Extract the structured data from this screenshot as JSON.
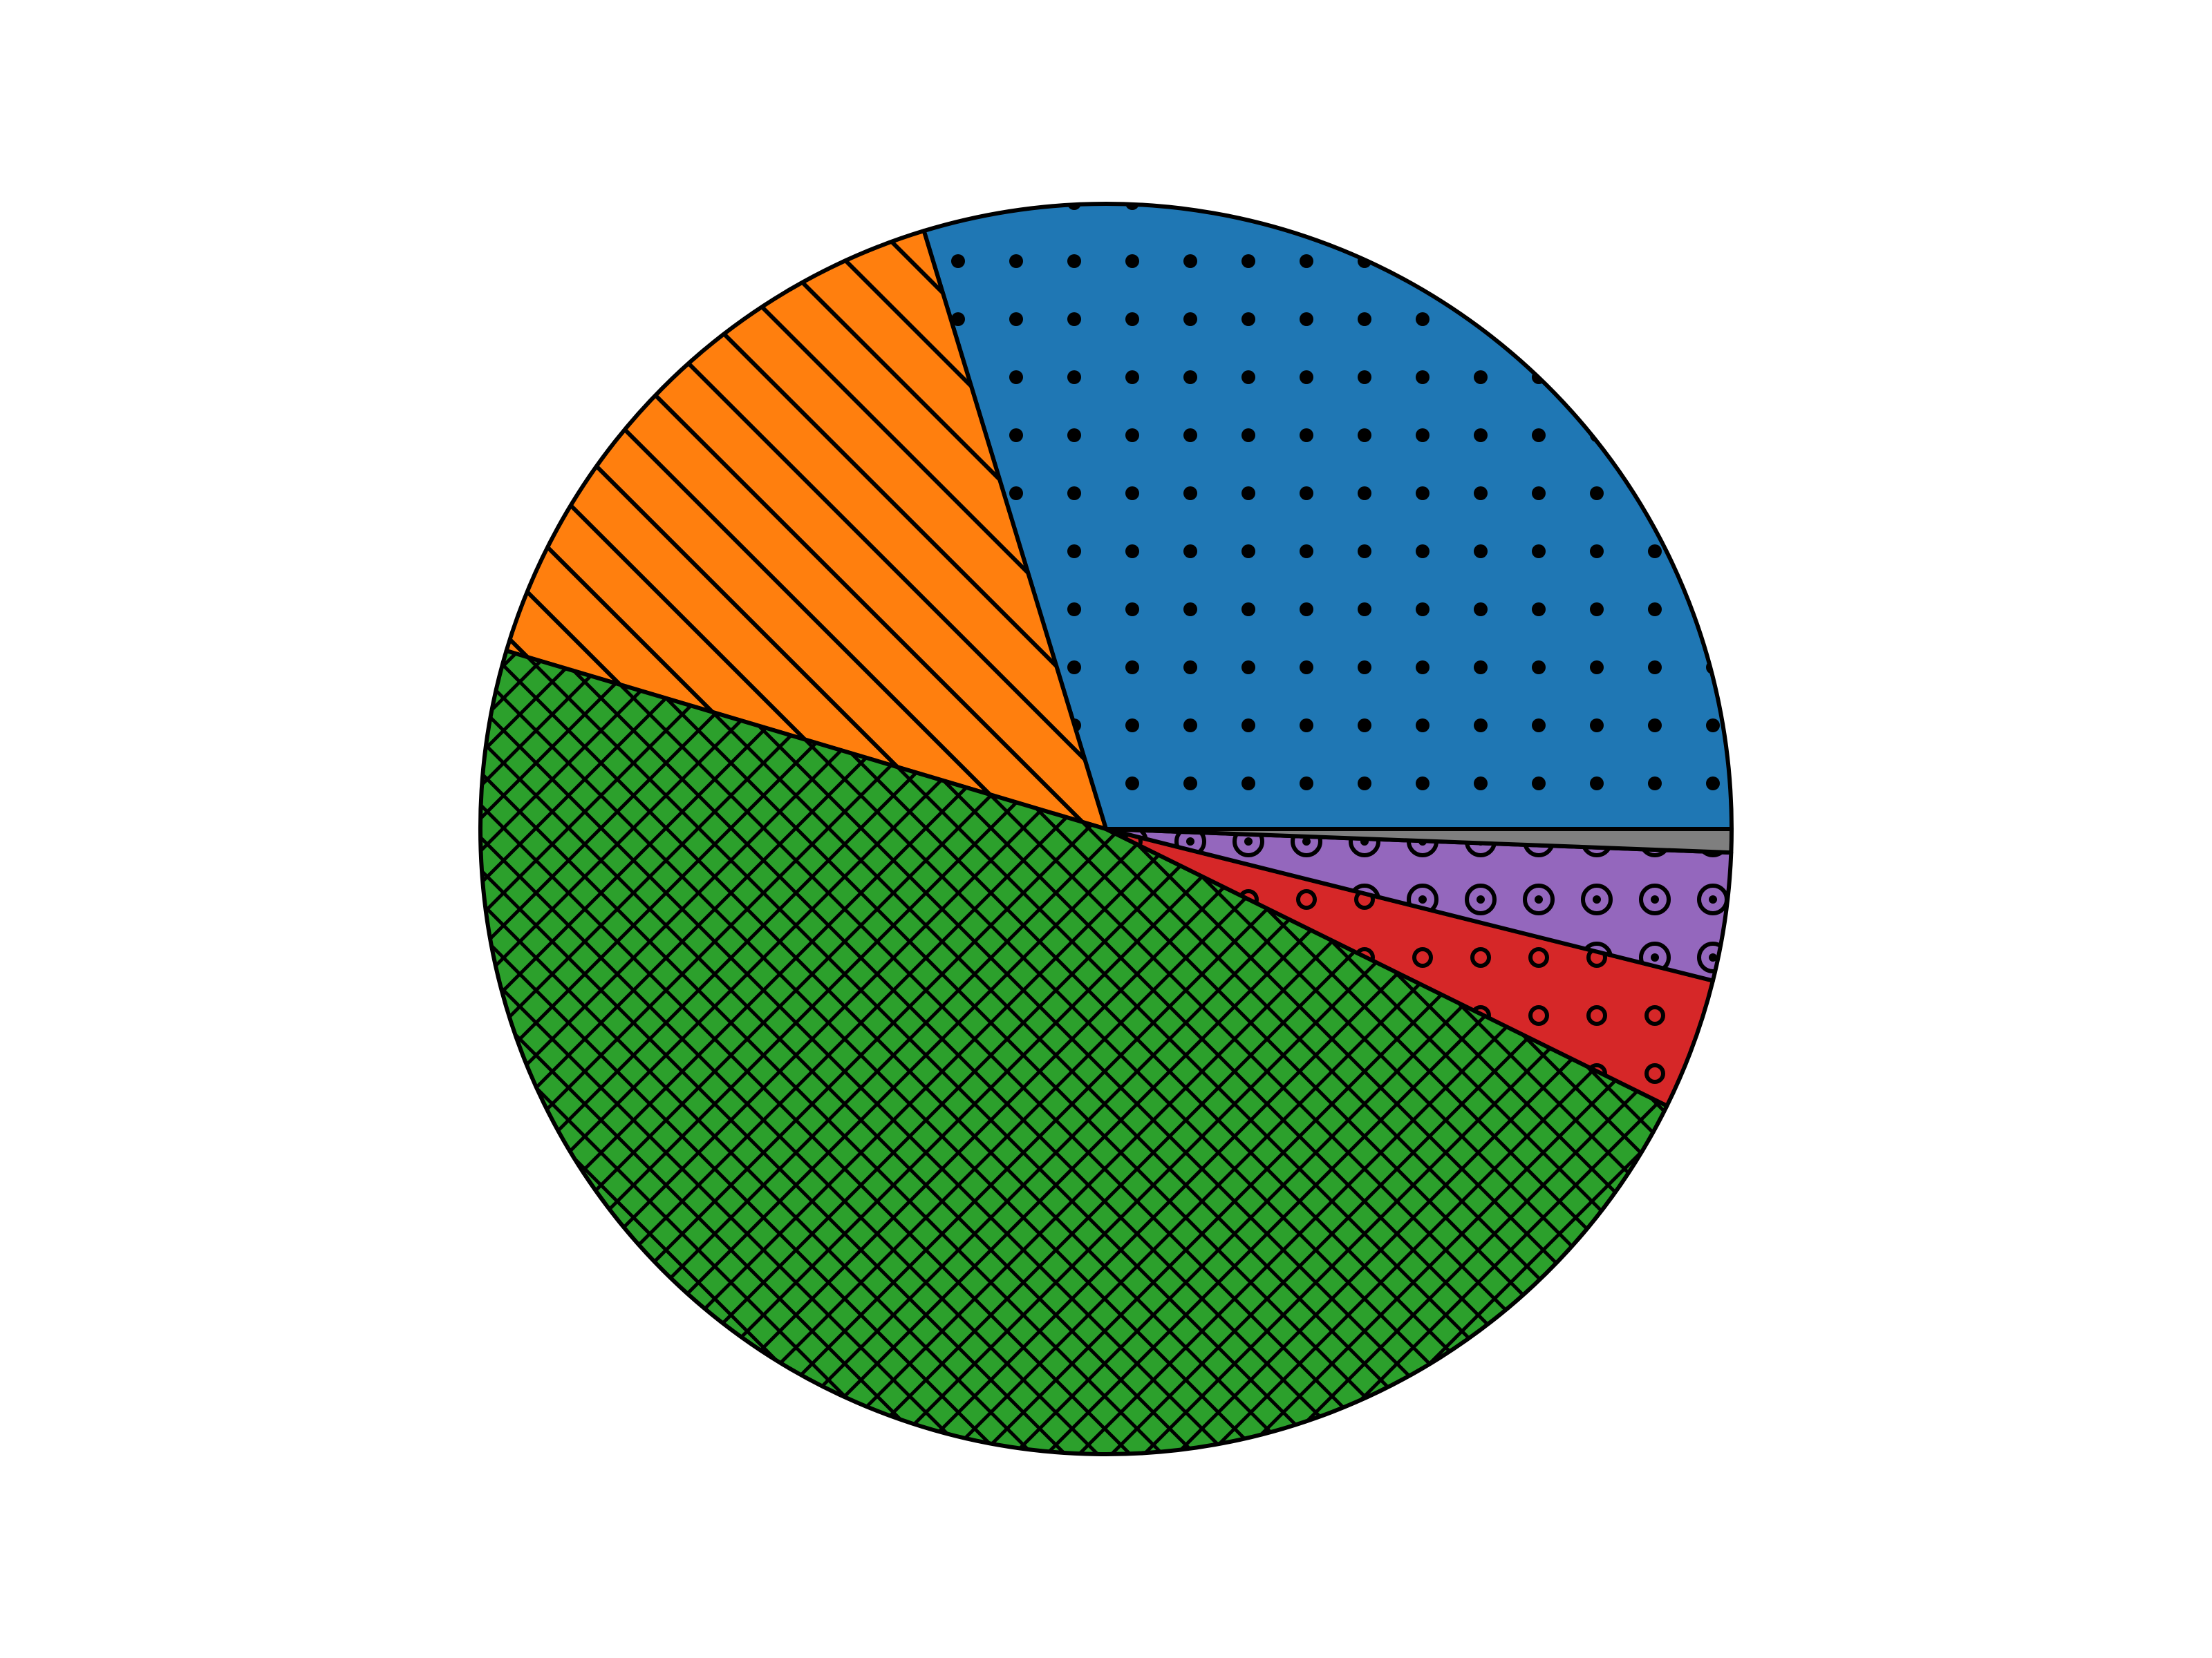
{
  "chart_data": {
    "type": "pie",
    "title": "",
    "start_angle": 0,
    "direction": "counterclockwise",
    "slices": [
      {
        "value": 29.7,
        "color": "#1f77b4",
        "hatch": "dots"
      },
      {
        "value": 15.7,
        "color": "#ff7f0e",
        "hatch": "diagonal"
      },
      {
        "value": 47.3,
        "color": "#2ca02c",
        "hatch": "crosshatch"
      },
      {
        "value": 3.4,
        "color": "#d62728",
        "hatch": "small-rings"
      },
      {
        "value": 3.3,
        "color": "#9467bd",
        "hatch": "rings"
      },
      {
        "value": 0.6,
        "color": "#7f7f7f",
        "hatch": "none"
      }
    ]
  }
}
